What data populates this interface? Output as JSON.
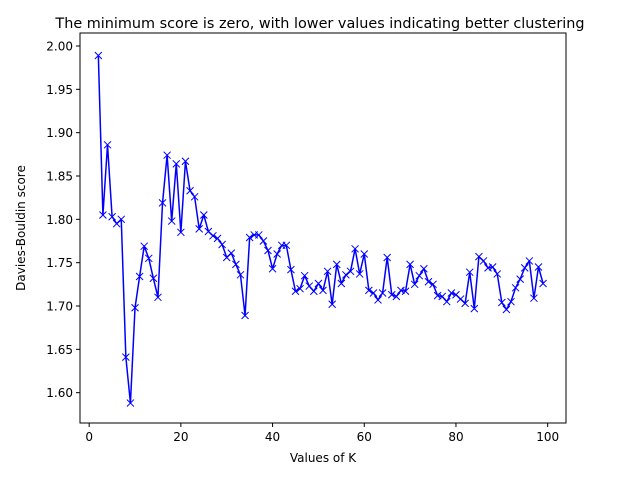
{
  "chart_data": {
    "type": "line",
    "title": "The minimum score is zero, with lower values indicating better clustering",
    "xlabel": "Values of K",
    "ylabel": "Davies-Bouldin score",
    "xlim": [
      -2,
      104
    ],
    "ylim": [
      1.565,
      2.015
    ],
    "xticks": [
      0,
      20,
      40,
      60,
      80,
      100
    ],
    "xtick_labels": [
      "0",
      "20",
      "40",
      "60",
      "80",
      "100"
    ],
    "yticks": [
      1.6,
      1.65,
      1.7,
      1.75,
      1.8,
      1.85,
      1.9,
      1.95,
      2.0
    ],
    "ytick_labels": [
      "1.60",
      "1.65",
      "1.70",
      "1.75",
      "1.80",
      "1.85",
      "1.90",
      "1.95",
      "2.00"
    ],
    "grid": false,
    "color": "#0000ff",
    "marker": "x",
    "series": [
      {
        "x": [
          2,
          3,
          4,
          5,
          6,
          7,
          8,
          9,
          10,
          11,
          12,
          13,
          14,
          15,
          16,
          17,
          18,
          19,
          20,
          21,
          22,
          23,
          24,
          25,
          26,
          27,
          28,
          29,
          30,
          31,
          32,
          33,
          34,
          35,
          36,
          37,
          38,
          39,
          40,
          41,
          42,
          43,
          44,
          45,
          46,
          47,
          48,
          49,
          50,
          51,
          52,
          53,
          54,
          55,
          56,
          57,
          58,
          59,
          60,
          61,
          62,
          63,
          64,
          65,
          66,
          67,
          68,
          69,
          70,
          71,
          72,
          73,
          74,
          75,
          76,
          77,
          78,
          79,
          80,
          81,
          82,
          83,
          84,
          85,
          86,
          87,
          88,
          89,
          90,
          91,
          92,
          93,
          94,
          95,
          96,
          97,
          98,
          99
        ],
        "values": [
          1.989,
          1.805,
          1.886,
          1.803,
          1.795,
          1.8,
          1.641,
          1.588,
          1.698,
          1.734,
          1.769,
          1.755,
          1.732,
          1.71,
          1.819,
          1.874,
          1.798,
          1.864,
          1.785,
          1.867,
          1.833,
          1.826,
          1.789,
          1.805,
          1.786,
          1.781,
          1.778,
          1.771,
          1.756,
          1.761,
          1.748,
          1.736,
          1.689,
          1.779,
          1.782,
          1.782,
          1.775,
          1.764,
          1.743,
          1.76,
          1.77,
          1.77,
          1.742,
          1.717,
          1.72,
          1.735,
          1.723,
          1.717,
          1.726,
          1.718,
          1.74,
          1.702,
          1.748,
          1.726,
          1.736,
          1.74,
          1.766,
          1.737,
          1.76,
          1.718,
          1.715,
          1.707,
          1.715,
          1.756,
          1.713,
          1.711,
          1.718,
          1.717,
          1.748,
          1.725,
          1.735,
          1.743,
          1.728,
          1.725,
          1.712,
          1.711,
          1.705,
          1.715,
          1.713,
          1.708,
          1.703,
          1.739,
          1.697,
          1.757,
          1.752,
          1.744,
          1.745,
          1.737,
          1.704,
          1.696,
          1.705,
          1.721,
          1.731,
          1.744,
          1.752,
          1.709,
          1.745,
          1.726
        ]
      }
    ]
  }
}
